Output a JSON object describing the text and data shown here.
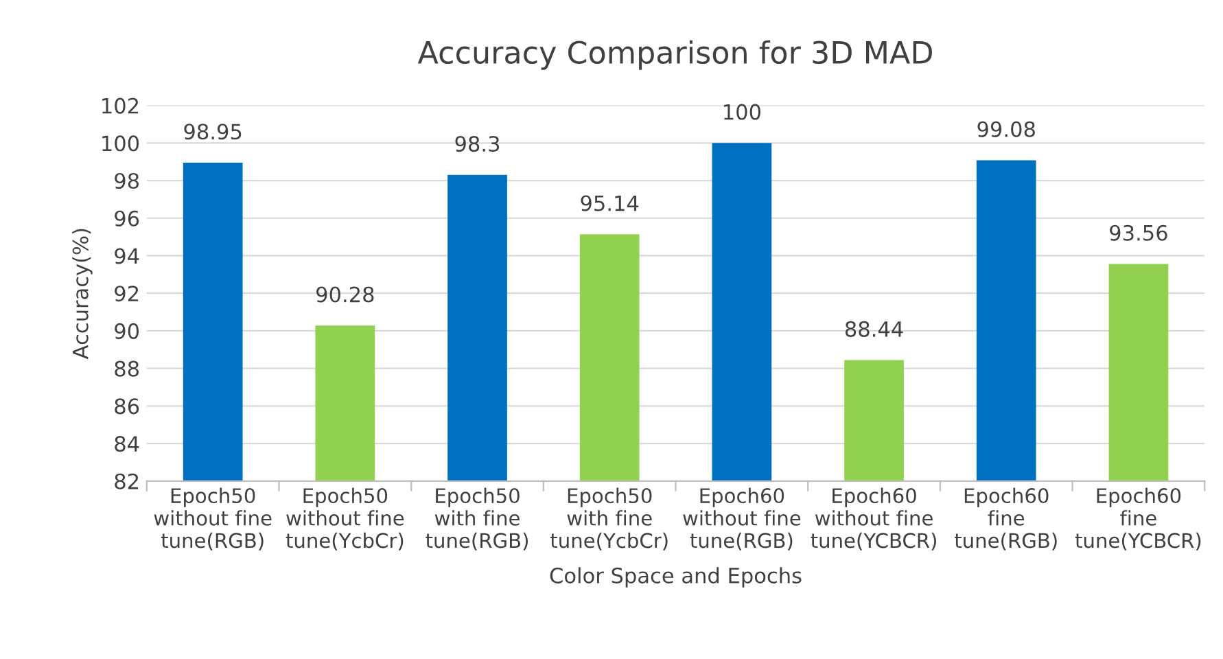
{
  "chart_data": {
    "type": "bar",
    "title": "Accuracy Comparison for 3D MAD",
    "xlabel": "Color Space and Epochs",
    "ylabel": "Accuracy(%)",
    "categories": [
      "Epoch50\nwithout fine\ntune(RGB)",
      "Epoch50\nwithout fine\ntune(YcbCr)",
      "Epoch50\nwith fine\ntune(RGB)",
      "Epoch50\nwith fine\ntune(YcbCr)",
      "Epoch60\nwithout fine\ntune(RGB)",
      "Epoch60\nwithout fine\ntune(YCBCR)",
      "Epoch60\nfine\ntune(RGB)",
      "Epoch60\nfine\ntune(YCBCR)"
    ],
    "values": [
      98.95,
      90.28,
      98.3,
      95.14,
      100,
      88.44,
      99.08,
      93.56
    ],
    "colors": [
      "#0070c0",
      "#92d050",
      "#0070c0",
      "#92d050",
      "#0070c0",
      "#92d050",
      "#0070c0",
      "#92d050"
    ],
    "ylim": [
      82,
      102
    ],
    "yticks": [
      82,
      84,
      86,
      88,
      90,
      92,
      94,
      96,
      98,
      100,
      102
    ],
    "grid": "y",
    "data_labels": true
  }
}
